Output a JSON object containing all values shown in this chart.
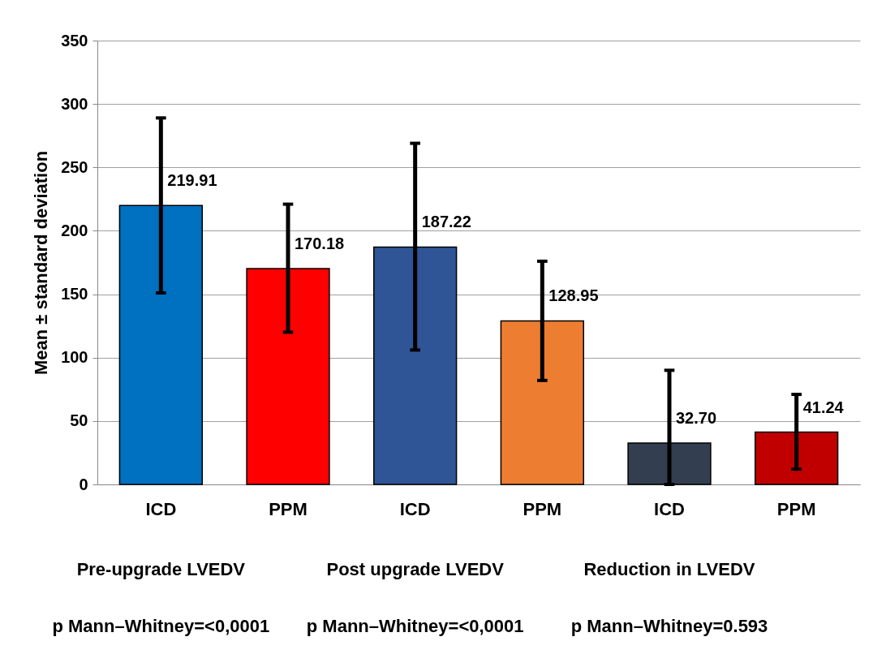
{
  "chart_data": {
    "type": "bar",
    "ylabel": "Mean ± standard deviation",
    "categories": [
      "ICD",
      "PPM",
      "ICD",
      "PPM",
      "ICD",
      "PPM"
    ],
    "values": [
      219.91,
      170.18,
      187.22,
      128.95,
      32.7,
      41.24
    ],
    "value_labels": [
      "219.91",
      "170.18",
      "187.22",
      "128.95",
      "32.70",
      "41.24"
    ],
    "colors": [
      "#0070c0",
      "#ff0000",
      "#2f5597",
      "#ed7d31",
      "#333f50",
      "#c00000"
    ],
    "errors": [
      [
        151,
        289
      ],
      [
        120,
        221
      ],
      [
        106,
        269
      ],
      [
        82,
        176
      ],
      [
        0,
        90
      ],
      [
        12,
        71
      ]
    ],
    "ylim": [
      0,
      350
    ],
    "yticks": [
      0,
      50,
      100,
      150,
      200,
      250,
      300,
      350
    ],
    "grid": "y",
    "annotations": [
      "Pre-upgrade LVEDV",
      "Post upgrade LVEDV",
      "Reduction in LVEDV",
      "p Mann–Whitney=<0,0001",
      "p Mann–Whitney=<0,0001",
      "p Mann–Whitney=0.593"
    ]
  }
}
